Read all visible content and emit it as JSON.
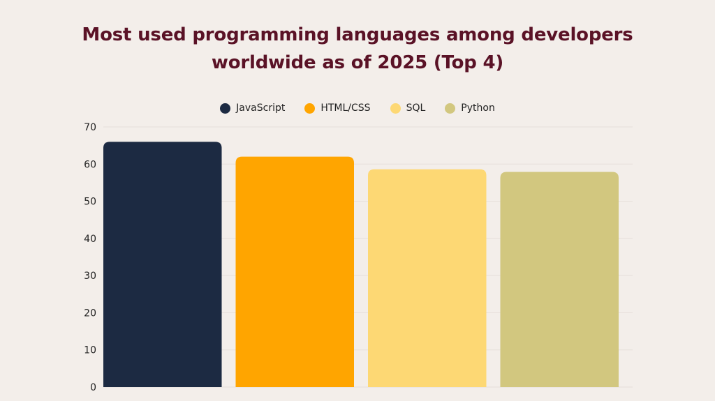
{
  "chart_data": {
    "type": "bar",
    "title": "Most used programming languages among developers worldwide as of 2025 (Top 4)",
    "title_lines": [
      "Most used programming languages among developers",
      "worldwide as of 2025 (Top 4)"
    ],
    "xlabel": "",
    "ylabel": "",
    "ylim": [
      0,
      70
    ],
    "yticks": [
      0,
      10,
      20,
      30,
      40,
      50,
      60,
      70
    ],
    "grid": true,
    "legend_position": "top-center",
    "categories": [
      "JavaScript",
      "HTML/CSS",
      "SQL",
      "Python"
    ],
    "values": [
      66,
      62,
      58.6,
      57.9
    ],
    "colors": [
      "#1c2a42",
      "#ffa500",
      "#fdd874",
      "#d2c77f"
    ]
  },
  "colors": {
    "background": "#f3eeea",
    "title": "#5a1226",
    "gridline": "#e6dfda"
  }
}
